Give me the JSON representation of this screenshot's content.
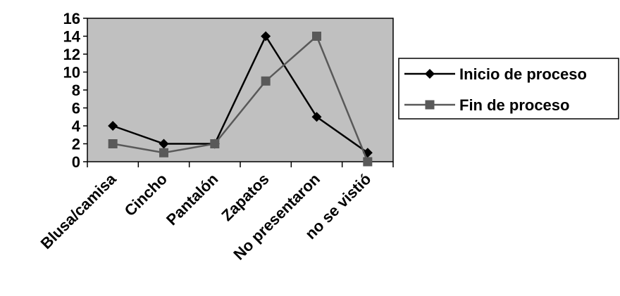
{
  "chart_data": {
    "type": "line",
    "categories": [
      "Blusa/camisa",
      "Cincho",
      "Pantalón",
      "Zapatos",
      "No presentaron",
      "no se vistió"
    ],
    "series": [
      {
        "name": "Inicio de proceso",
        "values": [
          4,
          2,
          2,
          14,
          5,
          1
        ],
        "color": "#000000",
        "marker": "diamond"
      },
      {
        "name": "Fin de proceso",
        "values": [
          2,
          1,
          2,
          9,
          14,
          0
        ],
        "color": "#595959",
        "marker": "square"
      }
    ],
    "y_ticks": [
      "0",
      "2",
      "4",
      "6",
      "8",
      "10",
      "12",
      "14",
      "16"
    ],
    "ylim": [
      0,
      16
    ],
    "grid": false,
    "plot_background": "#c0c0c0",
    "legend_position": "right"
  }
}
